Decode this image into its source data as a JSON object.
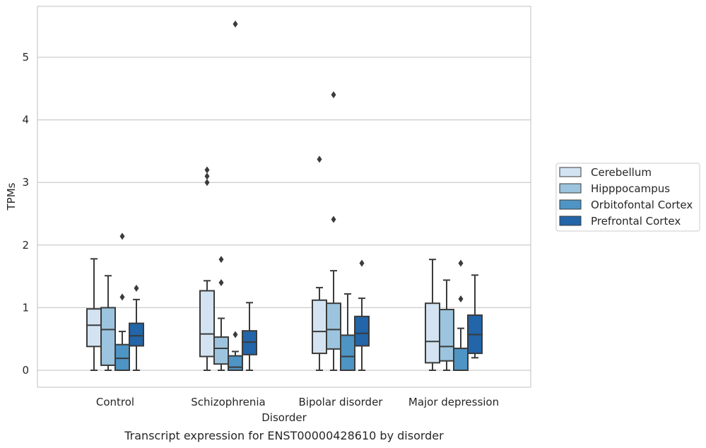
{
  "chart_data": {
    "type": "box",
    "xlabel": "Disorder",
    "ylabel": "TPMs",
    "caption": "Transcript expression for ENST00000428610 by disorder",
    "ylim": [
      -0.27,
      5.83
    ],
    "yticks": [
      0,
      1,
      2,
      3,
      4,
      5
    ],
    "grid": "horizontal",
    "legend_position": "right",
    "categories": [
      "Control",
      "Schizophrenia",
      "Bipolar disorder",
      "Major depression"
    ],
    "series": [
      {
        "name": "Cerebellum",
        "color": "#d3e3f2",
        "boxes": [
          {
            "whislo": 0.0,
            "q1": 0.38,
            "med": 0.72,
            "q3": 0.98,
            "whishi": 1.78,
            "fliers": []
          },
          {
            "whislo": 0.0,
            "q1": 0.22,
            "med": 0.58,
            "q3": 1.27,
            "whishi": 1.43,
            "fliers": [
              3.0,
              3.1,
              3.2
            ]
          },
          {
            "whislo": 0.0,
            "q1": 0.27,
            "med": 0.62,
            "q3": 1.12,
            "whishi": 1.32,
            "fliers": [
              3.37
            ]
          },
          {
            "whislo": 0.0,
            "q1": 0.12,
            "med": 0.46,
            "q3": 1.07,
            "whishi": 1.77,
            "fliers": []
          }
        ]
      },
      {
        "name": "Hipppocampus",
        "color": "#9cc4de",
        "boxes": [
          {
            "whislo": 0.0,
            "q1": 0.08,
            "med": 0.65,
            "q3": 1.0,
            "whishi": 1.51,
            "fliers": []
          },
          {
            "whislo": 0.0,
            "q1": 0.1,
            "med": 0.35,
            "q3": 0.53,
            "whishi": 0.83,
            "fliers": [
              1.4,
              1.77
            ]
          },
          {
            "whislo": 0.0,
            "q1": 0.34,
            "med": 0.65,
            "q3": 1.07,
            "whishi": 1.59,
            "fliers": [
              2.41,
              4.4
            ]
          },
          {
            "whislo": 0.0,
            "q1": 0.15,
            "med": 0.38,
            "q3": 0.97,
            "whishi": 1.44,
            "fliers": []
          }
        ]
      },
      {
        "name": "Orbitofontal Cortex",
        "color": "#4e94c4",
        "boxes": [
          {
            "whislo": 0.0,
            "q1": 0.0,
            "med": 0.19,
            "q3": 0.41,
            "whishi": 0.62,
            "fliers": [
              1.17,
              2.14
            ]
          },
          {
            "whislo": 0.0,
            "q1": 0.0,
            "med": 0.05,
            "q3": 0.23,
            "whishi": 0.3,
            "fliers": [
              0.57,
              5.53
            ]
          },
          {
            "whislo": 0.0,
            "q1": 0.0,
            "med": 0.22,
            "q3": 0.56,
            "whishi": 1.22,
            "fliers": []
          },
          {
            "whislo": 0.0,
            "q1": 0.0,
            "med": 0.0,
            "q3": 0.35,
            "whishi": 0.67,
            "fliers": [
              1.14,
              1.71
            ]
          }
        ]
      },
      {
        "name": "Prefrontal Cortex",
        "color": "#2265a8",
        "boxes": [
          {
            "whislo": 0.0,
            "q1": 0.39,
            "med": 0.55,
            "q3": 0.75,
            "whishi": 1.13,
            "fliers": [
              1.31
            ]
          },
          {
            "whislo": 0.0,
            "q1": 0.25,
            "med": 0.45,
            "q3": 0.63,
            "whishi": 1.08,
            "fliers": []
          },
          {
            "whislo": 0.0,
            "q1": 0.39,
            "med": 0.59,
            "q3": 0.86,
            "whishi": 1.15,
            "fliers": [
              1.71
            ]
          },
          {
            "whislo": 0.2,
            "q1": 0.27,
            "med": 0.57,
            "q3": 0.88,
            "whishi": 1.52,
            "fliers": []
          }
        ]
      }
    ]
  }
}
